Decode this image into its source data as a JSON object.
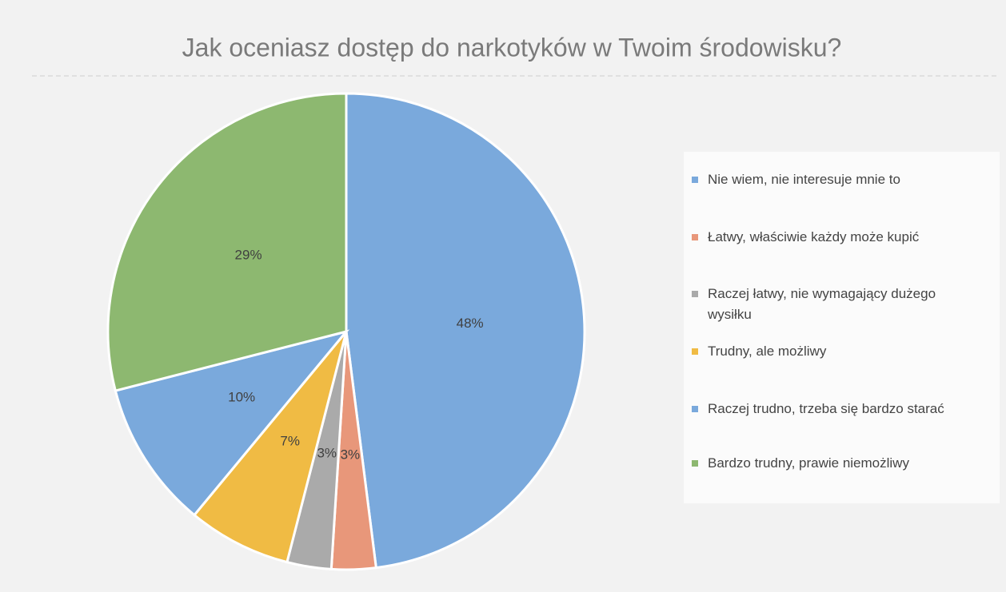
{
  "chart_data": {
    "type": "pie",
    "title": "Jak oceniasz dostęp do narkotyków w Twoim środowisku?",
    "categories": [
      "Nie wiem, nie interesuje mnie to",
      "Łatwy, właściwie każdy może kupić",
      "Raczej łatwy, nie wymagający dużego wysiłku",
      "Trudny, ale możliwy",
      "Raczej trudno, trzeba się bardzo starać",
      "Bardzo trudny, prawie niemożliwy"
    ],
    "values": [
      48,
      3,
      3,
      7,
      10,
      29
    ],
    "value_labels": [
      "48%",
      "3%",
      "3%",
      "7%",
      "10%",
      "29%"
    ],
    "colors": [
      "#7aa9dc",
      "#e8977a",
      "#aaaaaa",
      "#f0bb44",
      "#7aa9dc",
      "#8db870"
    ],
    "legend": "right"
  }
}
